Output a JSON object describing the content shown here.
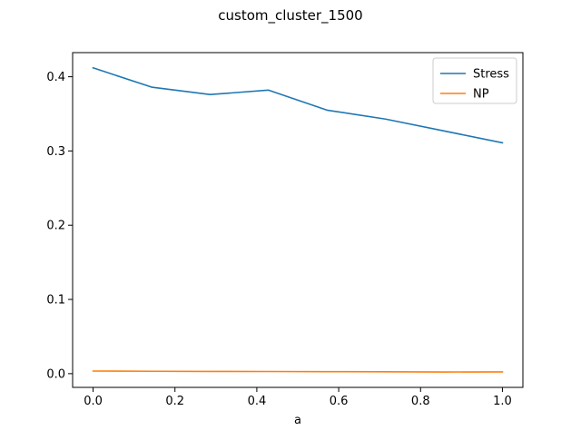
{
  "chart_data": {
    "type": "line",
    "title": "custom_cluster_1500",
    "xlabel": "a",
    "ylabel": "",
    "xlim": [
      -0.05,
      1.05
    ],
    "ylim": [
      -0.0185,
      0.4325
    ],
    "xticks": [
      0.0,
      0.2,
      0.4,
      0.6,
      0.8,
      1.0
    ],
    "xtick_labels": [
      "0.0",
      "0.2",
      "0.4",
      "0.6",
      "0.8",
      "1.0"
    ],
    "yticks": [
      0.0,
      0.1,
      0.2,
      0.3,
      0.4
    ],
    "ytick_labels": [
      "0.0",
      "0.1",
      "0.2",
      "0.3",
      "0.4"
    ],
    "grid": false,
    "legend_position": "upper right",
    "x": [
      0.0,
      0.142857,
      0.285714,
      0.428571,
      0.571429,
      0.714286,
      0.857143,
      1.0
    ],
    "series": [
      {
        "name": "Stress",
        "color": "#1f77b4",
        "values": [
          0.412,
          0.386,
          0.376,
          0.382,
          0.355,
          0.343,
          0.327,
          0.311
        ]
      },
      {
        "name": "NP",
        "color": "#ff7f0e",
        "values": [
          0.0035,
          0.0032,
          0.003,
          0.0029,
          0.0027,
          0.0025,
          0.0022,
          0.0024
        ]
      }
    ]
  }
}
